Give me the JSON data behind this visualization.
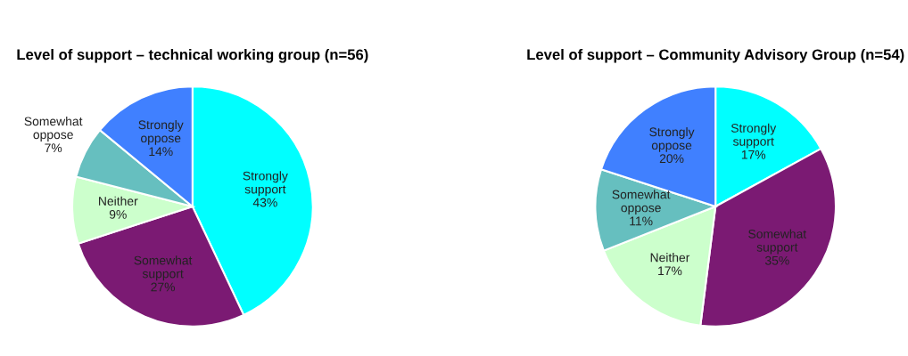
{
  "chart_data": [
    {
      "type": "pie",
      "title": "Level of support – technical working group (n=56)",
      "categories": [
        "Strongly support",
        "Somewhat support",
        "Neither",
        "Somewhat oppose",
        "Strongly oppose"
      ],
      "values": [
        43,
        27,
        9,
        7,
        14
      ],
      "value_labels": [
        "43%",
        "27%",
        "9%",
        "7%",
        "14%"
      ],
      "colors": [
        "#00ffff",
        "#7b1a73",
        "#ccffcc",
        "#66bfbf",
        "#4080ff"
      ]
    },
    {
      "type": "pie",
      "title": "Level of support – Community Advisory Group (n=54)",
      "categories": [
        "Strongly support",
        "Somewhat support",
        "Neither",
        "Somewhat oppose",
        "Strongly oppose"
      ],
      "values": [
        17,
        35,
        17,
        11,
        20
      ],
      "value_labels": [
        "17%",
        "35%",
        "17%",
        "11%",
        "20%"
      ],
      "colors": [
        "#00ffff",
        "#7b1a73",
        "#ccffcc",
        "#66bfbf",
        "#4080ff"
      ]
    }
  ]
}
